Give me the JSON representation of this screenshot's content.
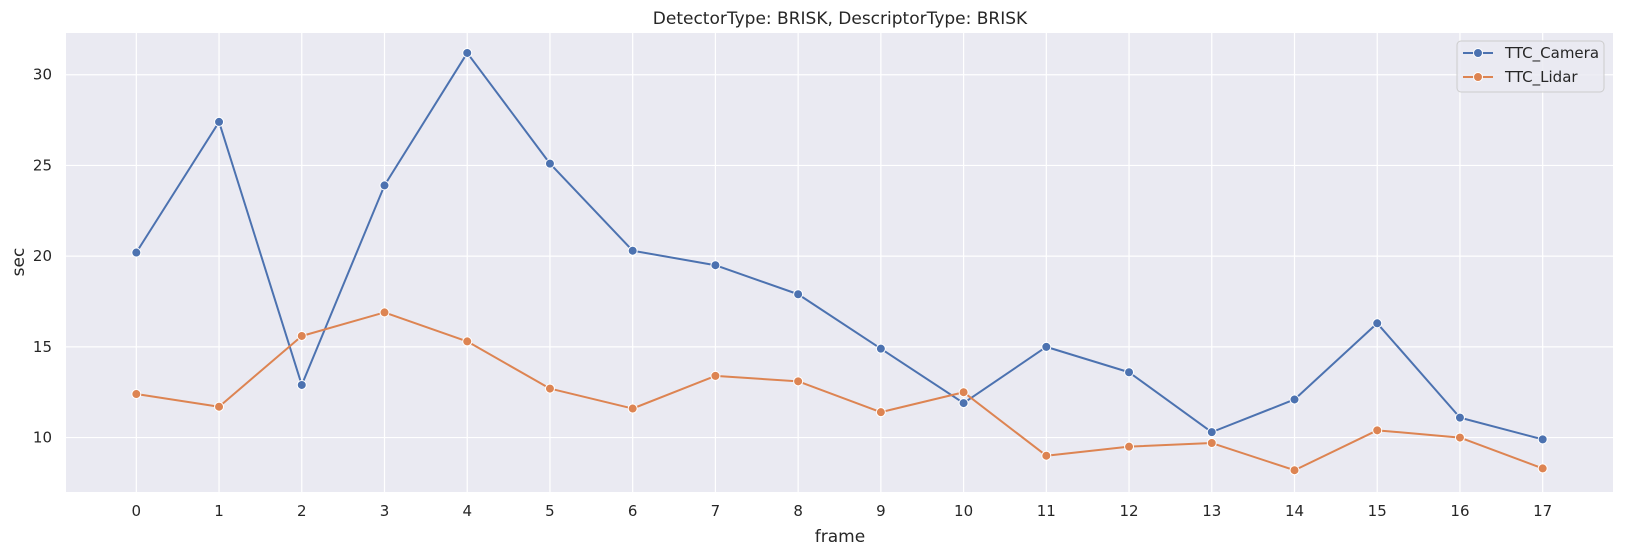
{
  "chart_data": {
    "type": "line",
    "title": "DetectorType: BRISK, DescriptorType: BRISK",
    "xlabel": "frame",
    "ylabel": "sec",
    "x": [
      0,
      1,
      2,
      3,
      4,
      5,
      6,
      7,
      8,
      9,
      10,
      11,
      12,
      13,
      14,
      15,
      16,
      17
    ],
    "xticks": [
      "0",
      "1",
      "2",
      "3",
      "4",
      "5",
      "6",
      "7",
      "8",
      "9",
      "10",
      "11",
      "12",
      "13",
      "14",
      "15",
      "16",
      "17"
    ],
    "xlim": [
      -0.85,
      17.85
    ],
    "ylim": [
      7.0,
      32.3
    ],
    "yticks": [
      10,
      15,
      20,
      25,
      30
    ],
    "ytick_labels": [
      "10",
      "15",
      "20",
      "25",
      "30"
    ],
    "grid": true,
    "legend_position": "top-right",
    "background": "#eaeaf2",
    "series": [
      {
        "name": "TTC_Camera",
        "color": "#4c72b0",
        "values": [
          20.2,
          27.4,
          12.9,
          23.9,
          31.2,
          25.1,
          20.3,
          19.5,
          17.9,
          14.9,
          11.9,
          15.0,
          13.6,
          10.3,
          12.1,
          16.3,
          11.1,
          9.9
        ]
      },
      {
        "name": "TTC_Lidar",
        "color": "#dd8452",
        "values": [
          12.4,
          11.7,
          15.6,
          16.9,
          15.3,
          12.7,
          11.6,
          13.4,
          13.1,
          11.4,
          12.5,
          9.0,
          9.5,
          9.7,
          8.2,
          10.4,
          10.0,
          8.3
        ]
      }
    ]
  }
}
